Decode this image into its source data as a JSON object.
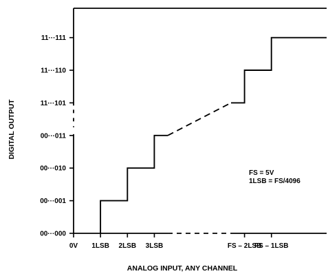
{
  "chart_data": {
    "type": "line",
    "xlabel": "ANALOG INPUT, ANY CHANNEL",
    "ylabel": "DIGITAL OUTPUT",
    "x_ticks": [
      "0V",
      "1LSB",
      "2LSB",
      "3LSB",
      "FS – 2LSB",
      "FS – 1LSB"
    ],
    "y_ticks": [
      "00···000",
      "00···001",
      "00···010",
      "00···011",
      "11···101",
      "11···110",
      "11···111"
    ],
    "annotations": [
      "FS = 5V",
      "1LSB = FS/4096"
    ],
    "series": [
      {
        "segments": [
          {
            "style": "solid",
            "points": [
              [
                1,
                0
              ],
              [
                1,
                1
              ],
              [
                2,
                1
              ],
              [
                2,
                2
              ],
              [
                3,
                2
              ],
              [
                3,
                3
              ],
              [
                3.5,
                3
              ]
            ]
          },
          {
            "style": "dashed",
            "points": [
              [
                3.5,
                3
              ],
              [
                5.85,
                4
              ]
            ]
          },
          {
            "style": "solid",
            "points": [
              [
                5.85,
                4
              ],
              [
                6.35,
                4
              ],
              [
                6.35,
                5
              ],
              [
                7.35,
                5
              ],
              [
                7.35,
                6
              ],
              [
                9.4,
                6
              ]
            ]
          }
        ]
      }
    ],
    "xlim": [
      0,
      9.4
    ],
    "ylim": [
      0,
      6.9
    ],
    "grid": false,
    "axis_breaks": [
      "x between 3LSB and FS – 2LSB",
      "y between 00···011 and 11···101"
    ]
  }
}
